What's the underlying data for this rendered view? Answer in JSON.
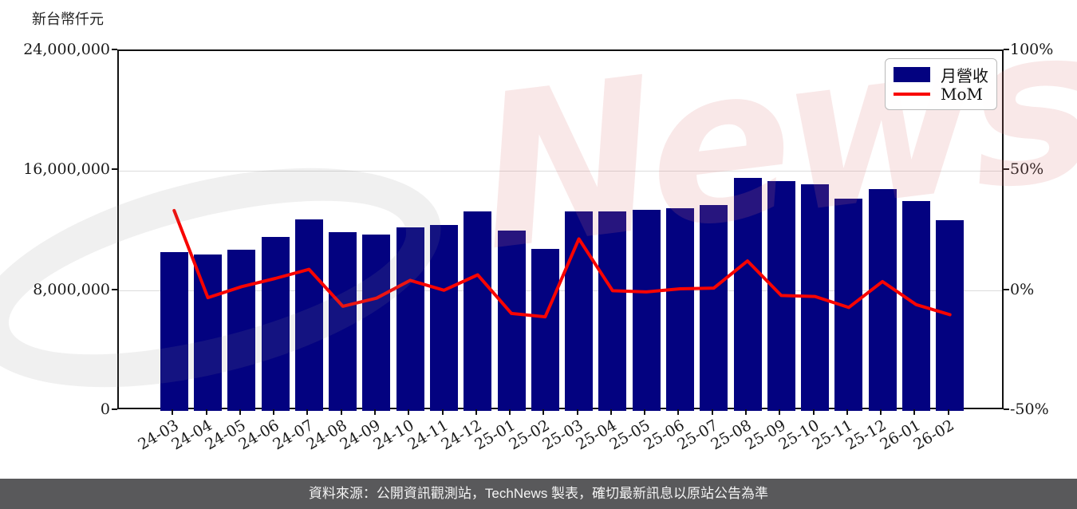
{
  "axis_title": "新台幣仟元",
  "legend": {
    "items": [
      {
        "label": "月營收",
        "type": "swatch",
        "color": "#030280"
      },
      {
        "label": "MoM",
        "type": "line",
        "color": "#f80400"
      }
    ]
  },
  "watermark": {
    "text": "News"
  },
  "footer": {
    "text": "資料來源：公開資訊觀測站，TechNews 製表，確切最新訊息以原站公告為準",
    "bg": "#59595b"
  },
  "chart_data": {
    "type": "bar",
    "title": "新台幣仟元",
    "categories": [
      "24-03",
      "24-04",
      "24-05",
      "24-06",
      "24-07",
      "24-08",
      "24-09",
      "24-10",
      "24-11",
      "24-12",
      "25-01",
      "25-02",
      "25-03",
      "25-04",
      "25-05",
      "25-06",
      "25-07",
      "25-08",
      "25-09",
      "25-10",
      "25-11",
      "25-12",
      "26-01",
      "26-02"
    ],
    "series": [
      {
        "name": "月營收",
        "type": "bar",
        "axis": "left",
        "color": "#030280",
        "unit": "新台幣仟元",
        "values": [
          10600000,
          10450000,
          10750000,
          11600000,
          12750000,
          11900000,
          11750000,
          12250000,
          12400000,
          13300000,
          12050000,
          10800000,
          13300000,
          13330000,
          13390000,
          13500000,
          13750000,
          15550000,
          15350000,
          15100000,
          14150000,
          14800000,
          14000000,
          12700000
        ]
      },
      {
        "name": "MoM",
        "type": "line",
        "axis": "right",
        "color": "#f80400",
        "unit": "%",
        "values": [
          33.5,
          -2.8,
          1.8,
          5.2,
          9.0,
          -6.4,
          -3.0,
          4.4,
          0.3,
          6.7,
          -9.4,
          -10.8,
          21.7,
          0.1,
          -0.4,
          0.9,
          1.2,
          12.5,
          -1.9,
          -2.3,
          -6.9,
          3.9,
          -5.7,
          -9.9
        ]
      }
    ],
    "y_left": {
      "min": 0,
      "max": 24000000,
      "tick_values": [
        24000000,
        16000000,
        8000000,
        0
      ],
      "tick_labels": [
        "24,000,000",
        "16,000,000",
        "8,000,000",
        "0"
      ]
    },
    "y_right": {
      "min": -50,
      "max": 100,
      "tick_values": [
        100,
        50,
        0,
        -50
      ],
      "tick_labels": [
        "100%",
        "50%",
        "0%",
        "-50%"
      ]
    },
    "gridlines_left_values": [
      16000000,
      8000000
    ],
    "x_tick_rotation": 30,
    "legend_position": "upper right",
    "grid": true
  }
}
